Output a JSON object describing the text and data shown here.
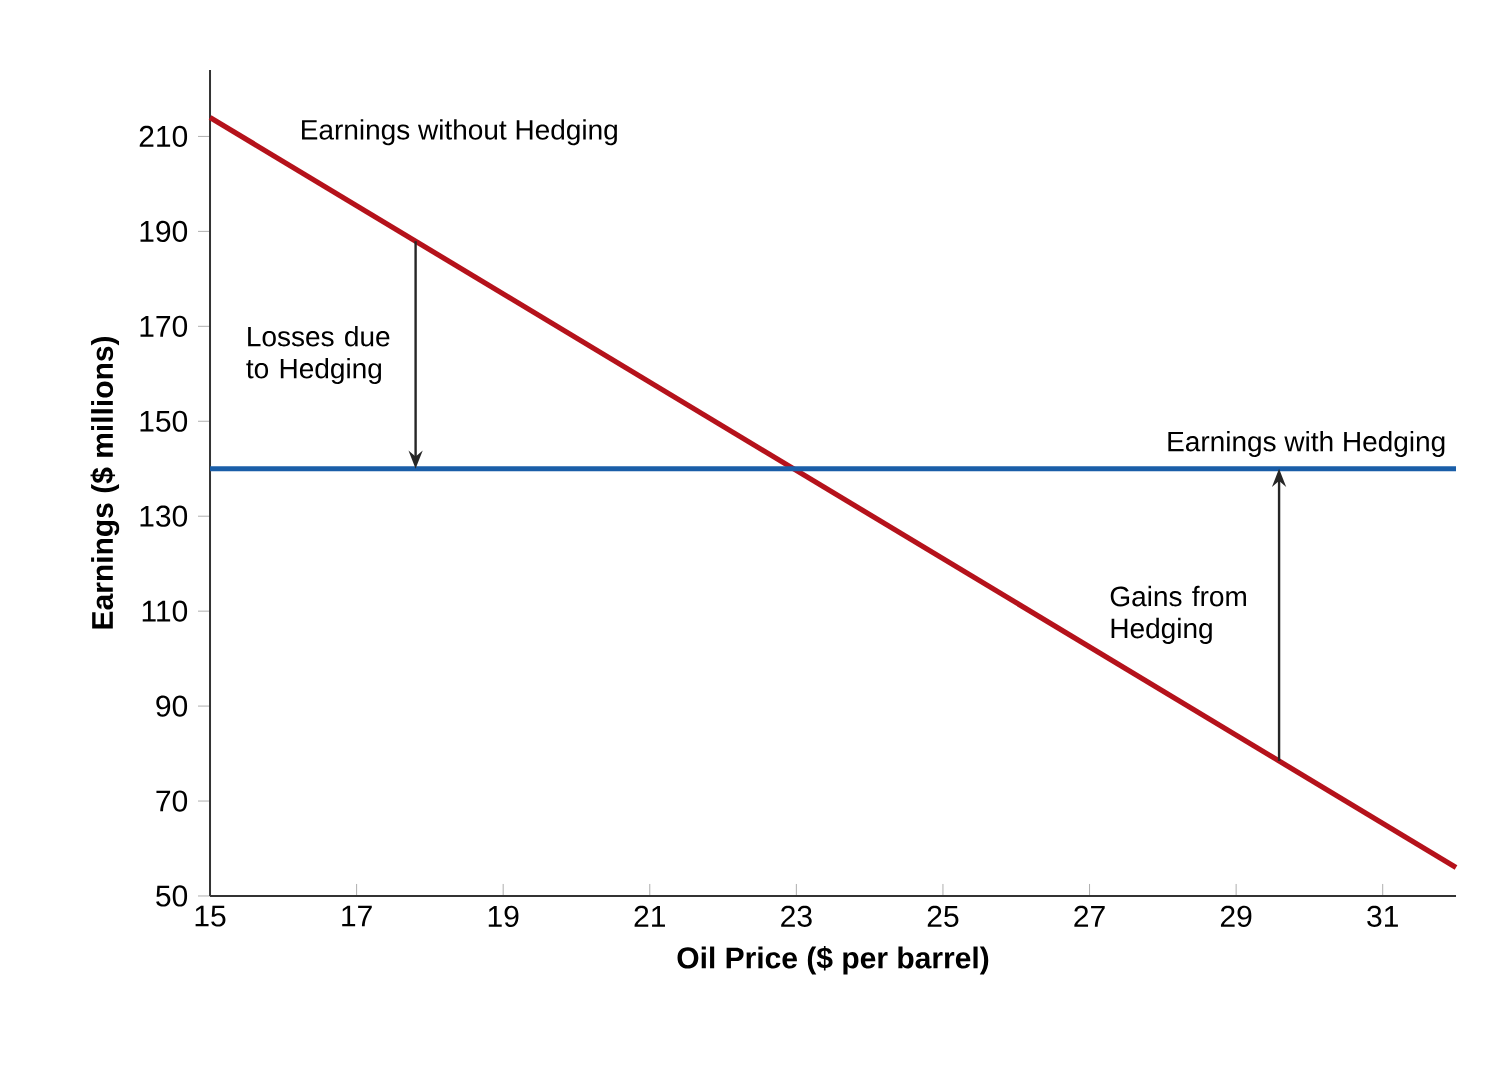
{
  "chart_data": {
    "type": "line",
    "xlabel": "Oil Price ($ per barrel)",
    "ylabel": "Earnings ($ millions)",
    "xlim": [
      15,
      32
    ],
    "xticks": [
      15,
      17,
      19,
      21,
      23,
      25,
      27,
      29,
      31
    ],
    "ylim": [
      50,
      224
    ],
    "yticks": [
      50,
      70,
      90,
      110,
      130,
      150,
      170,
      190,
      210
    ],
    "x": [
      15,
      32
    ],
    "series": [
      {
        "name": "Earnings without Hedging",
        "color": "#b5121b",
        "values": [
          214,
          56
        ]
      },
      {
        "name": "Earnings with Hedging",
        "color": "#1a5ea8",
        "values": [
          140,
          140
        ]
      }
    ],
    "annotations": [
      "Losses due to Hedging",
      "Gains from Hedging"
    ],
    "legend": false,
    "grid": false,
    "marker": "none",
    "line_style": "solid"
  }
}
